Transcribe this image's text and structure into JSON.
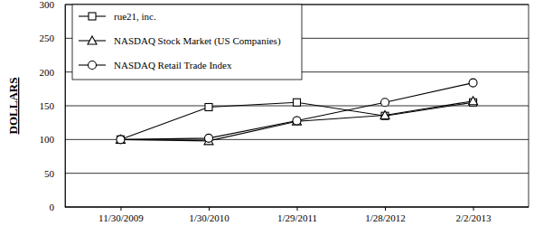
{
  "chart_data": {
    "type": "line",
    "y_label": "DOLLARS",
    "categories": [
      "11/30/2009",
      "1/30/2010",
      "1/29/2011",
      "1/28/2012",
      "2/2/2013"
    ],
    "series": [
      {
        "name": "rue21, inc.",
        "color": "#000000",
        "marker": "square",
        "values": [
          100,
          148,
          155,
          135,
          155
        ]
      },
      {
        "name": "NASDAQ Stock Market (US Companies)",
        "color": "#000000",
        "marker": "triangle",
        "values": [
          100,
          98,
          127,
          136,
          157
        ]
      },
      {
        "name": "NASDAQ Retail Trade Index",
        "color": "#000000",
        "marker": "circle",
        "values": [
          100,
          102,
          128,
          155,
          184
        ]
      }
    ],
    "ylim": [
      0,
      300
    ],
    "yticks": [
      0,
      50,
      100,
      150,
      200,
      250,
      300
    ],
    "grid": true,
    "legend": "upper left"
  }
}
